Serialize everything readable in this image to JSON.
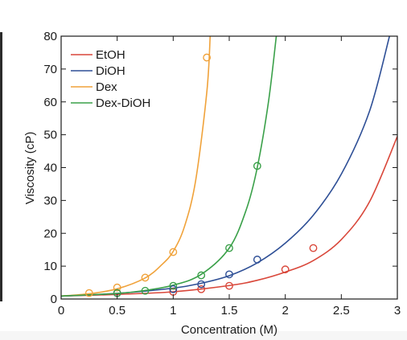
{
  "chart_data": {
    "type": "line",
    "xlabel": "Concentration (M)",
    "ylabel": "Viscosity (cP)",
    "xlim": [
      0,
      3
    ],
    "ylim": [
      0,
      80
    ],
    "xticks": [
      0,
      0.5,
      1,
      1.5,
      2,
      2.5,
      3
    ],
    "xtick_labels": [
      "0",
      "0.5",
      "1",
      "1.5",
      "2",
      "2.5",
      "3"
    ],
    "yticks": [
      0,
      10,
      20,
      30,
      40,
      50,
      60,
      70,
      80
    ],
    "ytick_labels": [
      "0",
      "10",
      "20",
      "30",
      "40",
      "50",
      "60",
      "70",
      "80"
    ],
    "grid": false,
    "legend_position": "top-left",
    "series": [
      {
        "name": "EtOH",
        "color": "#d9473a",
        "points": [
          [
            0.5,
            1.8
          ],
          [
            1,
            2.2
          ],
          [
            1.25,
            3.0
          ],
          [
            1.5,
            4.0
          ],
          [
            2,
            9.0
          ],
          [
            2.25,
            15.5
          ]
        ],
        "curve": [
          [
            0,
            0.9
          ],
          [
            0.5,
            1.4
          ],
          [
            1,
            2.2
          ],
          [
            1.5,
            4.1
          ],
          [
            1.75,
            5.7
          ],
          [
            2,
            8.2
          ],
          [
            2.25,
            11.7
          ],
          [
            2.5,
            18.1
          ],
          [
            2.75,
            29.5
          ],
          [
            3,
            49.5
          ]
        ]
      },
      {
        "name": "DiOH",
        "color": "#2e4f96",
        "points": [
          [
            0.5,
            1.8
          ],
          [
            1,
            3.0
          ],
          [
            1.25,
            4.5
          ],
          [
            1.5,
            7.5
          ],
          [
            1.75,
            12.0
          ]
        ],
        "curve": [
          [
            0,
            0.9
          ],
          [
            0.5,
            1.7
          ],
          [
            1,
            3.3
          ],
          [
            1.25,
            4.8
          ],
          [
            1.5,
            7.1
          ],
          [
            1.75,
            11.0
          ],
          [
            2,
            17.0
          ],
          [
            2.25,
            25.5
          ],
          [
            2.5,
            38.0
          ],
          [
            2.75,
            57.0
          ],
          [
            2.93,
            80.0
          ]
        ]
      },
      {
        "name": "Dex",
        "color": "#f0a23a",
        "points": [
          [
            0.25,
            1.8
          ],
          [
            0.5,
            3.5
          ],
          [
            0.75,
            6.5
          ],
          [
            1,
            14.3
          ],
          [
            1.3,
            73.5
          ]
        ],
        "curve": [
          [
            0,
            0.9
          ],
          [
            0.25,
            1.6
          ],
          [
            0.5,
            3.1
          ],
          [
            0.75,
            6.4
          ],
          [
            0.9,
            10.5
          ],
          [
            1,
            14.5
          ],
          [
            1.1,
            22.0
          ],
          [
            1.2,
            36.0
          ],
          [
            1.3,
            63.0
          ],
          [
            1.33,
            80.0
          ]
        ]
      },
      {
        "name": "Dex-DiOH",
        "color": "#3aa049",
        "points": [
          [
            0.5,
            1.8
          ],
          [
            0.75,
            2.5
          ],
          [
            1,
            4.0
          ],
          [
            1.25,
            7.2
          ],
          [
            1.5,
            15.5
          ],
          [
            1.75,
            40.5
          ]
        ],
        "curve": [
          [
            0,
            0.9
          ],
          [
            0.5,
            1.7
          ],
          [
            0.75,
            2.6
          ],
          [
            1,
            4.2
          ],
          [
            1.25,
            7.5
          ],
          [
            1.5,
            15.5
          ],
          [
            1.65,
            27.0
          ],
          [
            1.75,
            40.0
          ],
          [
            1.85,
            60.0
          ],
          [
            1.92,
            80.0
          ]
        ]
      }
    ]
  }
}
